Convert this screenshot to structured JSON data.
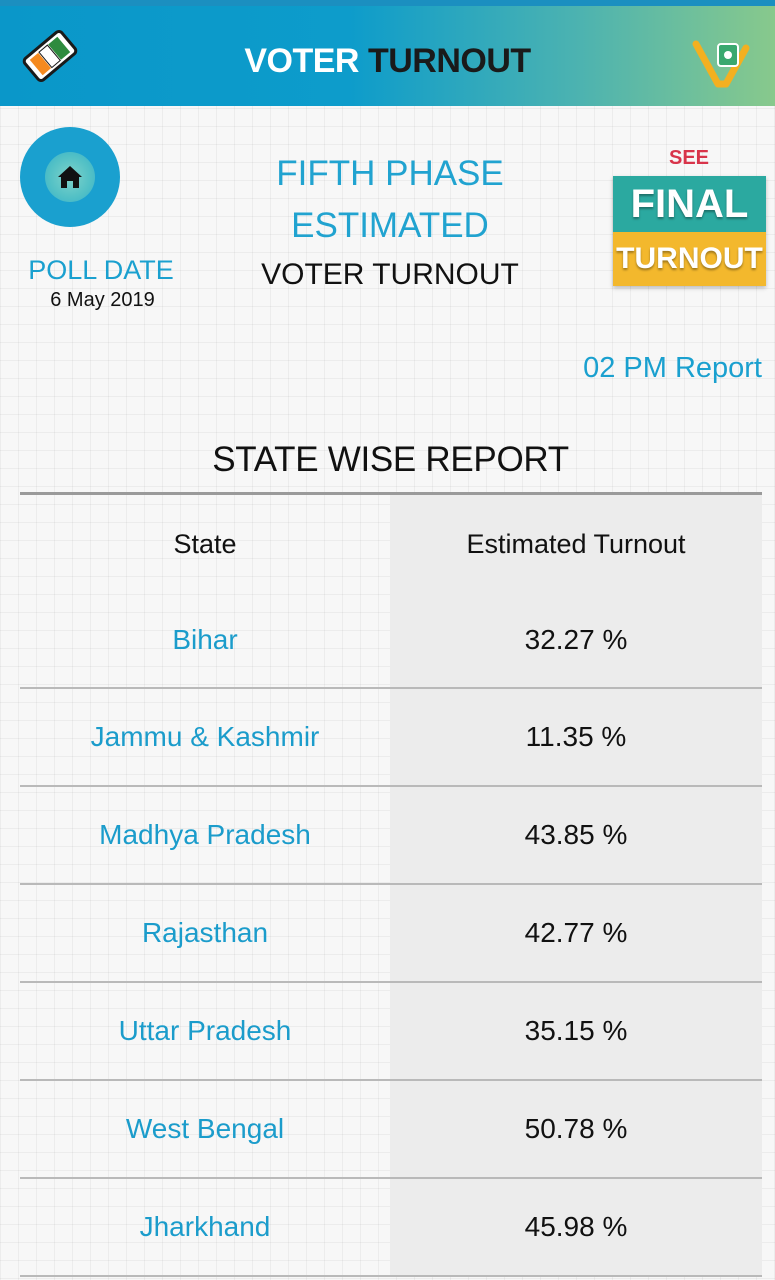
{
  "header": {
    "title_part1": "VOTER",
    "title_part2": "TURNOUT",
    "left_logo": "eci-tricolor-logo-icon",
    "right_logo": "voter-v-logo-icon"
  },
  "home": {
    "icon": "home-icon"
  },
  "poll": {
    "label": "POLL DATE",
    "date": "6 May 2019"
  },
  "phase": {
    "line1": "FIFTH PHASE",
    "line2": "ESTIMATED",
    "line3": "VOTER TURNOUT"
  },
  "final_badge": {
    "see": "SEE",
    "final": "FINAL",
    "turnout": "TURNOUT"
  },
  "report_time": "02 PM Report",
  "section": {
    "title": "STATE WISE REPORT"
  },
  "table": {
    "headers": {
      "state": "State",
      "turnout": "Estimated Turnout"
    },
    "rows": [
      {
        "state": "Bihar",
        "turnout": "32.27 %"
      },
      {
        "state": "Jammu & Kashmir",
        "turnout": "11.35 %"
      },
      {
        "state": "Madhya Pradesh",
        "turnout": "43.85 %"
      },
      {
        "state": "Rajasthan",
        "turnout": "42.77 %"
      },
      {
        "state": "Uttar Pradesh",
        "turnout": "35.15 %"
      },
      {
        "state": "West Bengal",
        "turnout": "50.78 %"
      },
      {
        "state": "Jharkhand",
        "turnout": "45.98 %"
      }
    ]
  },
  "colors": {
    "accent_blue": "#1aa0cf",
    "header_gradient_start": "#0a97c9",
    "header_gradient_end": "#88c98c",
    "badge_teal": "#2ba9a0",
    "badge_yellow": "#f3b82d",
    "see_red": "#d8344a"
  }
}
